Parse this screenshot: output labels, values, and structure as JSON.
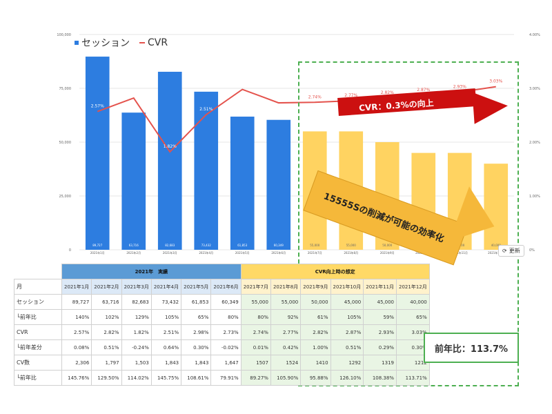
{
  "chart_data": {
    "type": "bar",
    "legend": [
      "セッション",
      "CVR"
    ],
    "categories": [
      "2021年1月",
      "2021年2月",
      "2021年3月",
      "2021年4月",
      "2021年5月",
      "2021年6月",
      "2021年7月",
      "2021年8月",
      "2021年9月",
      "2021年10月",
      "2021年11月",
      "2021年12月"
    ],
    "series": [
      {
        "name": "セッション",
        "kind": "bar",
        "axis": "left",
        "values": [
          89727,
          63716,
          82683,
          73432,
          61853,
          60349,
          55000,
          55000,
          50000,
          45000,
          45000,
          40000
        ],
        "colors": [
          "#2d7de0",
          "#2d7de0",
          "#2d7de0",
          "#2d7de0",
          "#2d7de0",
          "#2d7de0",
          "#ffd361",
          "#ffd361",
          "#ffd361",
          "#ffd361",
          "#ffd361",
          "#ffd361"
        ],
        "labels": [
          "89,727",
          "63,716",
          "82,683",
          "73,432",
          "61,853",
          "60,349",
          "55,000",
          "55,000",
          "50,000",
          "45,000",
          "45,000",
          "40,000"
        ]
      },
      {
        "name": "CVR",
        "kind": "line",
        "axis": "right",
        "color": "#e4524c",
        "values": [
          2.57,
          2.82,
          1.82,
          2.51,
          2.98,
          2.73,
          2.74,
          2.77,
          2.82,
          2.87,
          2.93,
          3.03
        ],
        "labels": [
          "2.57%",
          "2.82%",
          "1.82%",
          "2.51%",
          "2.98%",
          "2.73%",
          "2.74%",
          "2.77%",
          "2.82%",
          "2.87%",
          "2.93%",
          "3.03%"
        ]
      }
    ],
    "y_left": {
      "min": 0,
      "max": 100000,
      "ticks": [
        "0",
        "25,000",
        "50,000",
        "75,000",
        "100,000"
      ]
    },
    "y_right": {
      "min": 0,
      "max": 4,
      "ticks": [
        "0%",
        "1.00%",
        "2.00%",
        "3.00%",
        "4.00%"
      ]
    }
  },
  "callouts": {
    "cvr": "CVR：0.3%の向上",
    "cut": "15555Sの削減が可能の効率化"
  },
  "reset_label": "更新",
  "table": {
    "group_actual": "2021年　実績",
    "group_est": "CVR向上時の想定",
    "month_header": "月",
    "months": [
      "2021年1月",
      "2021年2月",
      "2021年3月",
      "2021年4月",
      "2021年5月",
      "2021年6月",
      "2021年7月",
      "2021年8月",
      "2021年9月",
      "2021年10月",
      "2021年11月",
      "2021年12月"
    ],
    "rows": [
      {
        "label": "セッション",
        "cells": [
          "89,727",
          "63,716",
          "82,683",
          "73,432",
          "61,853",
          "60,349",
          "55,000",
          "55,000",
          "50,000",
          "45,000",
          "45,000",
          "40,000"
        ]
      },
      {
        "label": "└前年比",
        "cells": [
          "140%",
          "102%",
          "129%",
          "105%",
          "65%",
          "80%",
          "80%",
          "92%",
          "61%",
          "105%",
          "59%",
          "65%"
        ]
      },
      {
        "label": "CVR",
        "cells": [
          "2.57%",
          "2.82%",
          "1.82%",
          "2.51%",
          "2.98%",
          "2.73%",
          "2.74%",
          "2.77%",
          "2.82%",
          "2.87%",
          "2.93%",
          "3.03%"
        ]
      },
      {
        "label": "└前年差分",
        "cells": [
          "0.08%",
          "0.51%",
          "-0.24%",
          "0.64%",
          "0.30%",
          "-0.02%",
          "0.01%",
          "0.42%",
          "1.00%",
          "0.51%",
          "0.29%",
          "0.30%"
        ]
      },
      {
        "label": "CV数",
        "cells": [
          "2,306",
          "1,797",
          "1,503",
          "1,843",
          "1,843",
          "1,647",
          "1507",
          "1524",
          "1410",
          "1292",
          "1319",
          "1212"
        ]
      },
      {
        "label": "└前年比",
        "cells": [
          "145.76%",
          "129.50%",
          "114.02%",
          "145.75%",
          "108.61%",
          "79.91%",
          "89.27%",
          "105.90%",
          "95.88%",
          "126.10%",
          "108.38%",
          "113.71%"
        ]
      }
    ],
    "ratio_label": "前年比：113.7%"
  }
}
